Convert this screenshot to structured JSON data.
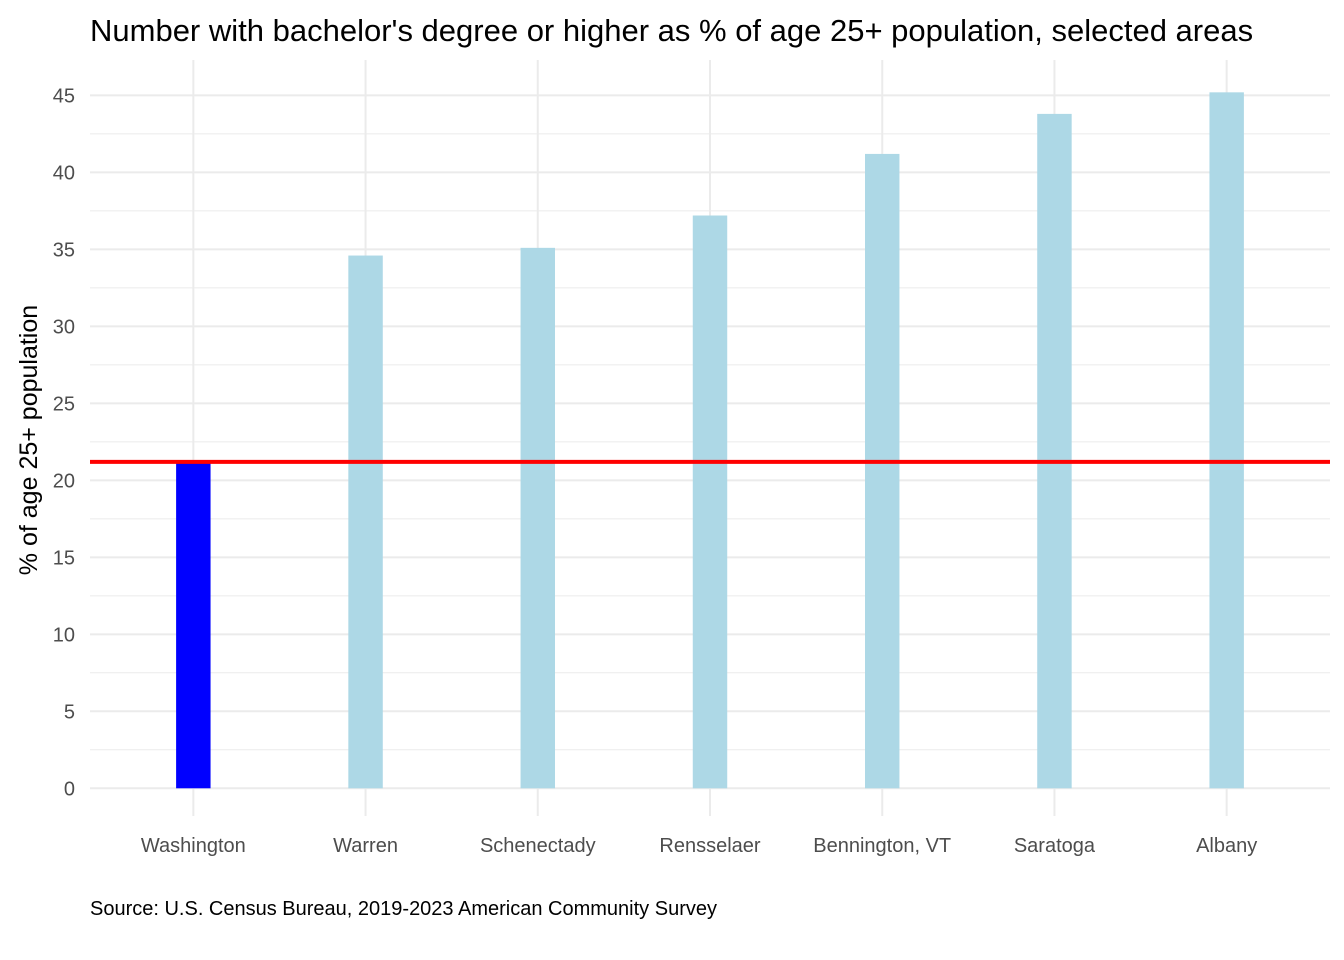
{
  "chart_data": {
    "type": "bar",
    "title": "Number with bachelor's degree or higher as % of age 25+ population, selected areas",
    "ylabel": "% of age 25+ population",
    "xlabel": "",
    "caption": "Source: U.S. Census Bureau, 2019-2023 American Community Survey",
    "categories": [
      "Washington",
      "Warren",
      "Schenectady",
      "Rensselaer",
      "Bennington, VT",
      "Saratoga",
      "Albany"
    ],
    "values": [
      21.1,
      34.6,
      35.1,
      37.2,
      41.2,
      43.8,
      45.2
    ],
    "highlight_index": 0,
    "colors": {
      "highlight": "#0000ff",
      "default": "#add8e6",
      "reference_line": "#ff0000",
      "grid": "#ebebeb"
    },
    "reference_line": 21.2,
    "ylim": [
      -1.8,
      47.3
    ],
    "yticks": [
      "0",
      "5",
      "10",
      "15",
      "20",
      "25",
      "30",
      "35",
      "40",
      "45"
    ],
    "grid": true,
    "legend": "none"
  }
}
